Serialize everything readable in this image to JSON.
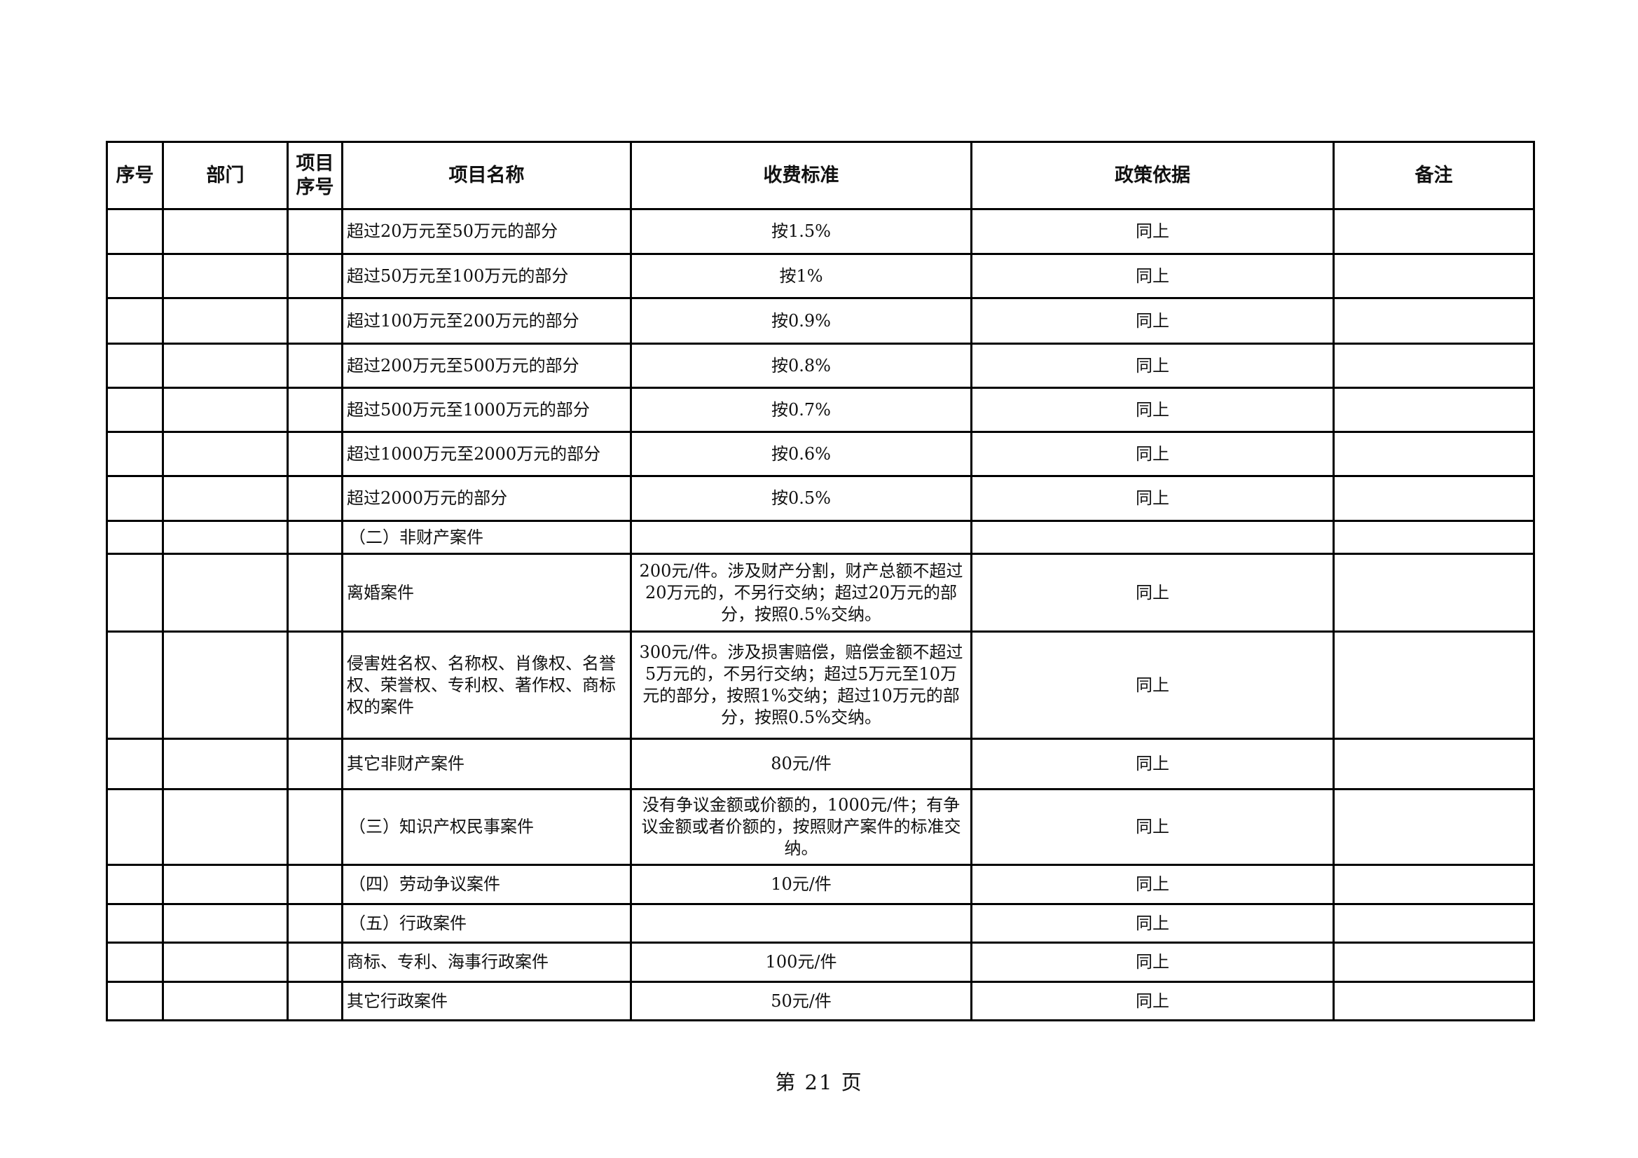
{
  "header": {
    "seq": "序号",
    "dept": "部门",
    "item_seq": "项目序号",
    "item_name": "项目名称",
    "fee_standard": "收费标准",
    "policy_basis": "政策依据",
    "remarks": "备注"
  },
  "rows": [
    {
      "name": "超过20万元至50万元的部分",
      "fee": "按1.5%",
      "basis": "同上"
    },
    {
      "name": "超过50万元至100万元的部分",
      "fee": "按1%",
      "basis": "同上"
    },
    {
      "name": "超过100万元至200万元的部分",
      "fee": "按0.9%",
      "basis": "同上"
    },
    {
      "name": "超过200万元至500万元的部分",
      "fee": "按0.8%",
      "basis": "同上"
    },
    {
      "name": "超过500万元至1000万元的部分",
      "fee": "按0.7%",
      "basis": "同上"
    },
    {
      "name": "超过1000万元至2000万元的部分",
      "fee": "按0.6%",
      "basis": "同上"
    },
    {
      "name": "超过2000万元的部分",
      "fee": "按0.5%",
      "basis": "同上"
    },
    {
      "name": "（二）非财产案件",
      "fee": "",
      "basis": ""
    },
    {
      "name": "离婚案件",
      "fee": "200元/件。涉及财产分割，财产总额不超过20万元的，不另行交纳；超过20万元的部分，按照0.5%交纳。",
      "basis": "同上"
    },
    {
      "name": "侵害姓名权、名称权、肖像权、名誉权、荣誉权、专利权、著作权、商标权的案件",
      "fee": "300元/件。涉及损害赔偿，赔偿金额不超过5万元的，不另行交纳；超过5万元至10万元的部分，按照1%交纳；超过10万元的部分，按照0.5%交纳。",
      "basis": "同上"
    },
    {
      "name": "其它非财产案件",
      "fee": "80元/件",
      "basis": "同上"
    },
    {
      "name": "（三）知识产权民事案件",
      "fee": "没有争议金额或价额的，1000元/件；有争议金额或者价额的，按照财产案件的标准交纳。",
      "basis": "同上"
    },
    {
      "name": "（四）劳动争议案件",
      "fee": "10元/件",
      "basis": "同上"
    },
    {
      "name": "（五）行政案件",
      "fee": "",
      "basis": "同上"
    },
    {
      "name": "商标、专利、海事行政案件",
      "fee": "100元/件",
      "basis": "同上"
    },
    {
      "name": "其它行政案件",
      "fee": "50元/件",
      "basis": "同上"
    }
  ],
  "footer": {
    "page_label": "第 21 页"
  }
}
